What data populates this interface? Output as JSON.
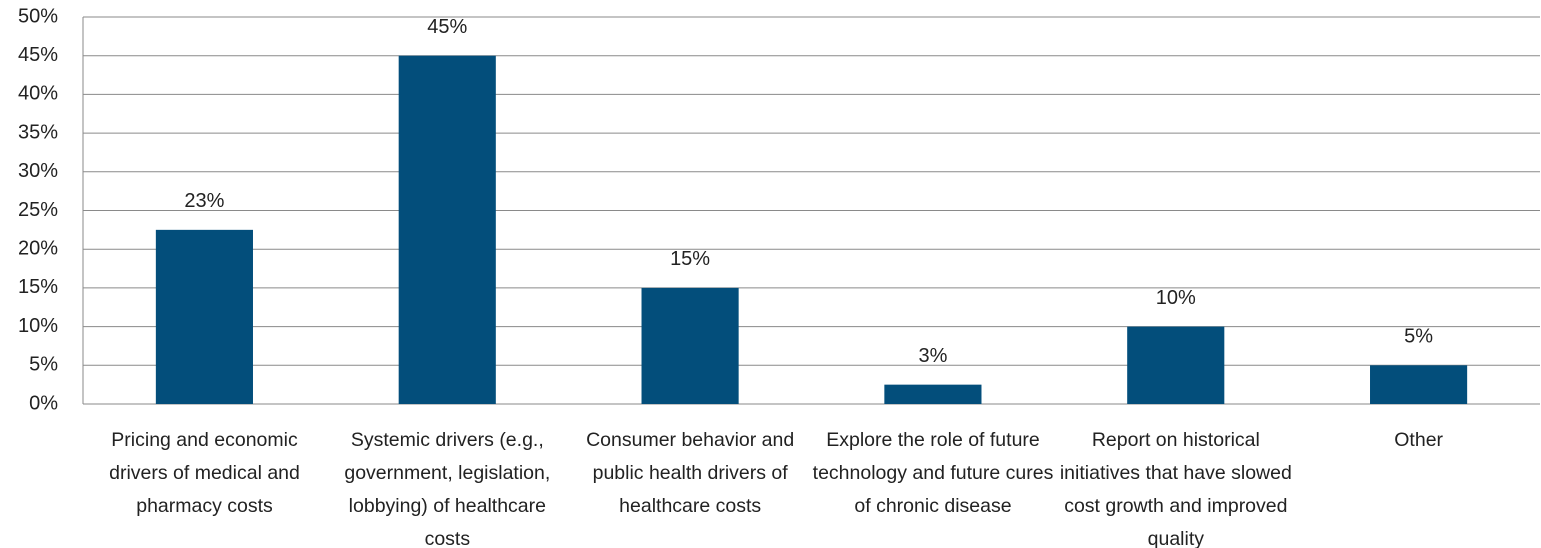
{
  "chart_data": {
    "type": "bar",
    "categories": [
      "Pricing and economic drivers of medical and pharmacy costs",
      "Systemic drivers (e.g., government, legislation, lobbying) of healthcare costs",
      "Consumer behavior and public health drivers of healthcare costs",
      "Explore the role of future technology and future cures of chronic disease",
      "Report on historical initiatives that have slowed cost growth and improved quality",
      "Other"
    ],
    "values": [
      22.5,
      45,
      15,
      2.5,
      10,
      5
    ],
    "value_labels": [
      "23%",
      "45%",
      "15%",
      "3%",
      "10%",
      "5%"
    ],
    "color": "#034e7b",
    "ylim": [
      0,
      50
    ],
    "yticks": [
      {
        "value": 0,
        "label": "0%"
      },
      {
        "value": 5,
        "label": "5%"
      },
      {
        "value": 10,
        "label": "10%"
      },
      {
        "value": 15,
        "label": "15%"
      },
      {
        "value": 20,
        "label": "20%"
      },
      {
        "value": 25,
        "label": "25%"
      },
      {
        "value": 30,
        "label": "30%"
      },
      {
        "value": 35,
        "label": "35%"
      },
      {
        "value": 40,
        "label": "40%"
      },
      {
        "value": 45,
        "label": "45%"
      },
      {
        "value": 50,
        "label": "50%"
      }
    ],
    "grid": true
  }
}
